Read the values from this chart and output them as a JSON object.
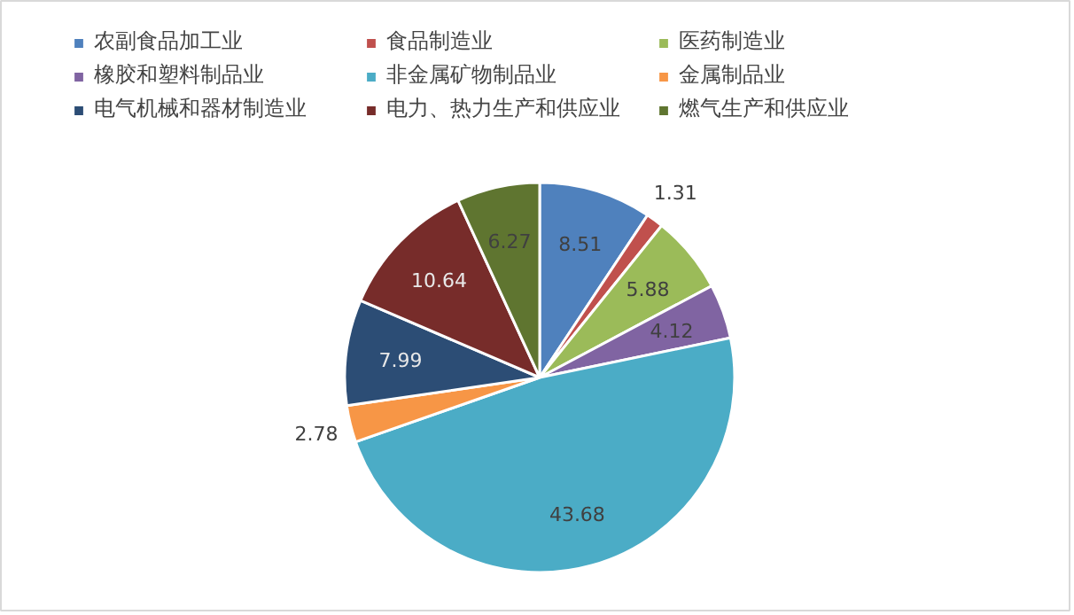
{
  "chart_data": {
    "type": "pie",
    "categories": [
      "农副食品加工业",
      "食品制造业",
      "医药制造业",
      "橡胶和塑料制品业",
      "非金属矿物制品业",
      "金属制品业",
      "电气机械和器材制造业",
      "电力、热力生产和供应业",
      "燃气生产和供应业"
    ],
    "values": [
      8.51,
      1.31,
      5.88,
      4.12,
      43.68,
      2.78,
      7.99,
      10.64,
      6.27
    ],
    "colors": [
      "#4f81bd",
      "#c0504d",
      "#9bbb59",
      "#8064a2",
      "#4bacc6",
      "#f79646",
      "#2c4d75",
      "#772c2a",
      "#5f7530"
    ],
    "data_labels": true,
    "legend": "top"
  }
}
